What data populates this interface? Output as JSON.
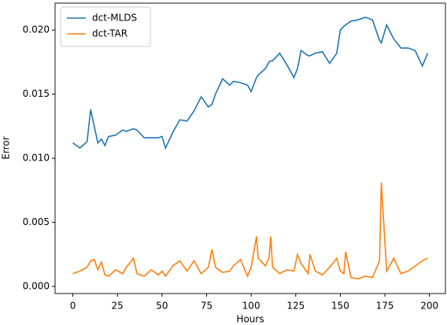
{
  "chart_data": {
    "type": "line",
    "x_label": "Hours",
    "y_label": "Error",
    "x": [
      0,
      4,
      8,
      10,
      12,
      14,
      16,
      18,
      20,
      24,
      28,
      30,
      34,
      36,
      40,
      44,
      48,
      50,
      52,
      56,
      60,
      64,
      68,
      72,
      76,
      78,
      80,
      84,
      88,
      90,
      94,
      98,
      100,
      103,
      104,
      108,
      110,
      111,
      112,
      116,
      120,
      124,
      126,
      128,
      132,
      133,
      136,
      140,
      144,
      148,
      150,
      152,
      153,
      156,
      160,
      164,
      168,
      172,
      173,
      176,
      180,
      184,
      188,
      192,
      196,
      199
    ],
    "series": [
      {
        "name": "dct-MLDS",
        "color": "#1f77b4",
        "values": [
          0.0112,
          0.0108,
          0.0113,
          0.0138,
          0.0125,
          0.0112,
          0.0115,
          0.011,
          0.0117,
          0.0118,
          0.0122,
          0.0121,
          0.0123,
          0.0122,
          0.0116,
          0.0116,
          0.0116,
          0.0117,
          0.0108,
          0.012,
          0.013,
          0.0129,
          0.0137,
          0.0148,
          0.014,
          0.0142,
          0.015,
          0.0162,
          0.0157,
          0.016,
          0.0159,
          0.0157,
          0.0152,
          0.0163,
          0.0165,
          0.017,
          0.0175,
          0.0176,
          0.0176,
          0.0182,
          0.0173,
          0.0163,
          0.017,
          0.0184,
          0.018,
          0.018,
          0.0182,
          0.0183,
          0.0174,
          0.0182,
          0.02,
          0.0203,
          0.0204,
          0.0207,
          0.0208,
          0.021,
          0.0208,
          0.0192,
          0.019,
          0.0204,
          0.0193,
          0.0186,
          0.0186,
          0.0184,
          0.0172,
          0.0182
        ]
      },
      {
        "name": "dct-TAR",
        "color": "#ff7f0e",
        "values": [
          0.001,
          0.0012,
          0.0015,
          0.002,
          0.0021,
          0.0013,
          0.0019,
          0.0009,
          0.0008,
          0.0013,
          0.001,
          0.0015,
          0.0022,
          0.001,
          0.0008,
          0.0013,
          0.0009,
          0.0012,
          0.0008,
          0.0016,
          0.002,
          0.0012,
          0.002,
          0.001,
          0.0015,
          0.0029,
          0.0015,
          0.0011,
          0.0012,
          0.0016,
          0.0021,
          0.0008,
          0.0015,
          0.0039,
          0.0022,
          0.0016,
          0.0022,
          0.0039,
          0.0015,
          0.001,
          0.0013,
          0.0012,
          0.0025,
          0.0018,
          0.001,
          0.0025,
          0.0012,
          0.0009,
          0.0015,
          0.0022,
          0.0012,
          0.001,
          0.0027,
          0.0007,
          0.0006,
          0.0008,
          0.0007,
          0.002,
          0.0081,
          0.0012,
          0.0022,
          0.001,
          0.0012,
          0.0016,
          0.002,
          0.0022
        ]
      }
    ],
    "xlim": [
      -9.95,
      208.95
    ],
    "ylim": [
      -0.00055,
      0.0221
    ],
    "xticks": [
      0,
      25,
      50,
      75,
      100,
      125,
      150,
      175,
      200
    ],
    "yticks": [
      {
        "value": 0,
        "label": "0.000"
      },
      {
        "value": 0.005,
        "label": "0.005"
      },
      {
        "value": 0.01,
        "label": "0.010"
      },
      {
        "value": 0.015,
        "label": "0.015"
      },
      {
        "value": 0.02,
        "label": "0.020"
      }
    ],
    "legend": "upper left"
  }
}
